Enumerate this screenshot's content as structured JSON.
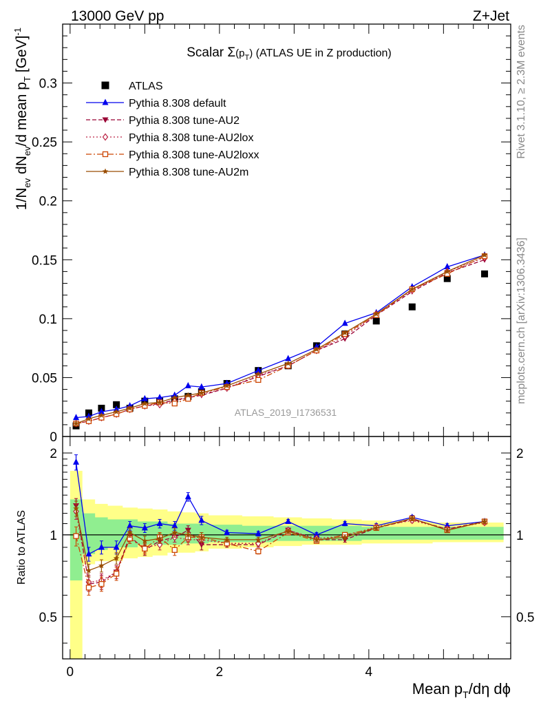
{
  "header": {
    "left": "13000 GeV pp",
    "right": "Z+Jet"
  },
  "side": {
    "rivet": "Rivet 3.1.10, ≥ 2.3M events",
    "mcplots": "mcplots.cern.ch [arXiv:1306.3436]"
  },
  "chart_data": [
    {
      "type": "line",
      "panel": "main",
      "title": "Scalar Σ(p_T) (ATLAS UE in Z production)",
      "title_parts": {
        "pre": "Scalar ",
        "sigma": "Σ",
        "paren_open": "(p",
        "sub": "T",
        "paren_close": ")",
        "post": " (ATLAS UE in Z production)"
      },
      "ylabel": "1/N_ev dN_ev/d mean p_T [GeV]^-1",
      "ylabel_parts": {
        "a": "1/N",
        "a_sub": "ev",
        "b": " dN",
        "b_sub": "ev",
        "c": "/d mean p",
        "c_sub": "T",
        "d": " [GeV]",
        "d_sup": "-1"
      },
      "xlim": [
        -0.1,
        5.9
      ],
      "ylim": [
        0,
        0.35
      ],
      "yticks": [
        "0",
        "0.05",
        "0.1",
        "0.15",
        "0.2",
        "0.25",
        "0.3"
      ],
      "analysis_label": "ATLAS_2019_I1736531",
      "legend_position": "top-left",
      "x": [
        0.08,
        0.25,
        0.42,
        0.62,
        0.8,
        1.0,
        1.2,
        1.4,
        1.58,
        1.76,
        2.1,
        2.52,
        2.92,
        3.3,
        3.68,
        4.1,
        4.58,
        5.05,
        5.55
      ],
      "series": [
        {
          "name": "ATLAS",
          "color": "#000000",
          "marker": "square",
          "line": "none",
          "values": [
            0.009,
            0.02,
            0.024,
            0.027,
            0.024,
            0.03,
            0.03,
            0.032,
            0.034,
            0.038,
            0.045,
            0.056,
            0.06,
            0.077,
            0.087,
            0.098,
            0.11,
            0.134,
            0.138
          ]
        },
        {
          "name": "Pythia 8.308 default",
          "color": "#0000ee",
          "marker": "triangle-up",
          "line": "solid",
          "values": [
            0.016,
            0.017,
            0.021,
            0.023,
            0.026,
            0.032,
            0.033,
            0.035,
            0.043,
            0.042,
            0.045,
            0.056,
            0.066,
            0.076,
            0.096,
            0.105,
            0.127,
            0.144,
            0.154
          ]
        },
        {
          "name": "Pythia 8.308 tune-AU2",
          "color": "#990033",
          "marker": "triangle-down",
          "line": "dashed",
          "values": [
            0.011,
            0.013,
            0.016,
            0.019,
            0.023,
            0.026,
            0.028,
            0.031,
            0.033,
            0.035,
            0.041,
            0.051,
            0.06,
            0.073,
            0.083,
            0.103,
            0.123,
            0.139,
            0.15
          ]
        },
        {
          "name": "Pythia 8.308 tune-AU2lox",
          "color": "#bb2244",
          "marker": "diamond-open",
          "line": "dotted",
          "values": [
            0.011,
            0.013,
            0.016,
            0.019,
            0.023,
            0.026,
            0.027,
            0.03,
            0.033,
            0.036,
            0.041,
            0.052,
            0.06,
            0.073,
            0.085,
            0.104,
            0.124,
            0.14,
            0.152
          ]
        },
        {
          "name": "Pythia 8.308 tune-AU2loxx",
          "color": "#cc4400",
          "marker": "square-open",
          "line": "dashdot",
          "values": [
            0.011,
            0.013,
            0.016,
            0.019,
            0.023,
            0.026,
            0.029,
            0.028,
            0.032,
            0.037,
            0.042,
            0.048,
            0.06,
            0.073,
            0.087,
            0.103,
            0.125,
            0.138,
            0.153
          ]
        },
        {
          "name": "Pythia 8.308 tune-AU2m",
          "color": "#994c00",
          "marker": "star",
          "line": "solid",
          "values": [
            0.011,
            0.015,
            0.018,
            0.021,
            0.024,
            0.028,
            0.029,
            0.033,
            0.035,
            0.037,
            0.043,
            0.053,
            0.062,
            0.074,
            0.088,
            0.104,
            0.125,
            0.14,
            0.154
          ]
        }
      ]
    },
    {
      "type": "line",
      "panel": "ratio",
      "ylabel": "Ratio to ATLAS",
      "xlabel": "Mean p_T/dη dϕ",
      "xlabel_parts": {
        "a": "Mean p",
        "a_sub": "T",
        "b": "/dη dϕ"
      },
      "xlim": [
        -0.1,
        5.9
      ],
      "ylim": [
        0.35,
        2.3
      ],
      "log_y": true,
      "xticks": [
        "0",
        "2",
        "4"
      ],
      "yticks": [
        "0.5",
        "1",
        "2"
      ],
      "bands": {
        "inner_color": "#90ee90",
        "outer_color": "#ffff88",
        "edges": [
          0.0,
          0.16,
          0.33,
          0.5,
          0.7,
          0.9,
          1.1,
          1.3,
          1.5,
          1.67,
          1.85,
          2.3,
          2.72,
          3.1,
          3.5,
          3.9,
          4.3,
          4.85,
          5.3,
          5.8
        ],
        "inner": [
          [
            0.68,
            1.35
          ],
          [
            0.85,
            1.2
          ],
          [
            0.88,
            1.16
          ],
          [
            0.9,
            1.14
          ],
          [
            0.9,
            1.14
          ],
          [
            0.92,
            1.12
          ],
          [
            0.92,
            1.12
          ],
          [
            0.92,
            1.1
          ],
          [
            0.93,
            1.1
          ],
          [
            0.93,
            1.1
          ],
          [
            0.94,
            1.09
          ],
          [
            0.94,
            1.08
          ],
          [
            0.95,
            1.08
          ],
          [
            0.95,
            1.08
          ],
          [
            0.95,
            1.08
          ],
          [
            0.96,
            1.07
          ],
          [
            0.96,
            1.07
          ],
          [
            0.96,
            1.07
          ],
          [
            0.96,
            1.07
          ]
        ],
        "outer": [
          [
            0.3,
            1.72
          ],
          [
            0.78,
            1.35
          ],
          [
            0.8,
            1.3
          ],
          [
            0.8,
            1.28
          ],
          [
            0.82,
            1.26
          ],
          [
            0.83,
            1.25
          ],
          [
            0.84,
            1.24
          ],
          [
            0.86,
            1.22
          ],
          [
            0.86,
            1.21
          ],
          [
            0.87,
            1.2
          ],
          [
            0.89,
            1.18
          ],
          [
            0.9,
            1.17
          ],
          [
            0.91,
            1.16
          ],
          [
            0.92,
            1.15
          ],
          [
            0.92,
            1.14
          ],
          [
            0.93,
            1.13
          ],
          [
            0.93,
            1.12
          ],
          [
            0.94,
            1.11
          ],
          [
            0.94,
            1.11
          ]
        ]
      },
      "series": [
        {
          "name": "Pythia 8.308 default",
          "color": "#0000ee",
          "marker": "triangle-up",
          "line": "solid",
          "values": [
            1.85,
            0.85,
            0.9,
            0.9,
            1.08,
            1.06,
            1.1,
            1.08,
            1.38,
            1.13,
            1.02,
            1.01,
            1.12,
            1.0,
            1.1,
            1.08,
            1.16,
            1.08,
            1.12
          ],
          "errors": [
            0.12,
            0.05,
            0.05,
            0.05,
            0.04,
            0.04,
            0.04,
            0.04,
            0.05,
            0.04,
            0.02,
            0.02,
            0.02,
            0.02,
            0.02,
            0.02,
            0.02,
            0.02,
            0.02
          ]
        },
        {
          "name": "Pythia 8.308 tune-AU2",
          "color": "#990033",
          "marker": "triangle-down",
          "line": "dashed",
          "values": [
            1.28,
            0.66,
            0.67,
            0.73,
            0.99,
            0.88,
            0.95,
            0.98,
            1.04,
            0.92,
            0.92,
            0.92,
            1.04,
            0.96,
            0.96,
            1.06,
            1.14,
            1.05,
            1.12
          ],
          "errors": [
            0.08,
            0.04,
            0.04,
            0.04,
            0.04,
            0.04,
            0.04,
            0.04,
            0.04,
            0.04,
            0.02,
            0.02,
            0.02,
            0.02,
            0.02,
            0.02,
            0.02,
            0.02,
            0.02
          ]
        },
        {
          "name": "Pythia 8.308 tune-AU2lox",
          "color": "#bb2244",
          "marker": "diamond-open",
          "line": "dotted",
          "values": [
            1.22,
            0.67,
            0.68,
            0.73,
            0.97,
            0.9,
            0.92,
            0.98,
            0.96,
            0.96,
            0.93,
            0.93,
            1.04,
            0.97,
            0.99,
            1.07,
            1.13,
            1.05,
            1.11
          ],
          "errors": [
            0.08,
            0.04,
            0.04,
            0.04,
            0.04,
            0.04,
            0.04,
            0.04,
            0.04,
            0.04,
            0.02,
            0.02,
            0.02,
            0.02,
            0.02,
            0.02,
            0.02,
            0.02,
            0.02
          ]
        },
        {
          "name": "Pythia 8.308 tune-AU2loxx",
          "color": "#cc4400",
          "marker": "square-open",
          "line": "dashdot",
          "values": [
            0.99,
            0.64,
            0.66,
            0.72,
            0.97,
            0.89,
            0.98,
            0.88,
            0.98,
            0.98,
            0.93,
            0.87,
            1.02,
            0.95,
            1.0,
            1.06,
            1.15,
            1.04,
            1.12
          ],
          "errors": [
            0.08,
            0.04,
            0.04,
            0.04,
            0.04,
            0.04,
            0.04,
            0.04,
            0.04,
            0.04,
            0.02,
            0.02,
            0.02,
            0.02,
            0.02,
            0.02,
            0.02,
            0.02,
            0.02
          ]
        },
        {
          "name": "Pythia 8.308 tune-AU2m",
          "color": "#994c00",
          "marker": "star",
          "line": "solid",
          "values": [
            1.25,
            0.74,
            0.77,
            0.82,
            1.02,
            0.95,
            0.97,
            1.02,
            1.0,
            0.98,
            0.96,
            0.96,
            1.03,
            0.96,
            0.98,
            1.06,
            1.15,
            1.04,
            1.12
          ],
          "errors": [
            0.08,
            0.04,
            0.04,
            0.04,
            0.04,
            0.04,
            0.04,
            0.04,
            0.04,
            0.04,
            0.02,
            0.02,
            0.02,
            0.02,
            0.02,
            0.02,
            0.02,
            0.02,
            0.02
          ]
        }
      ]
    }
  ]
}
